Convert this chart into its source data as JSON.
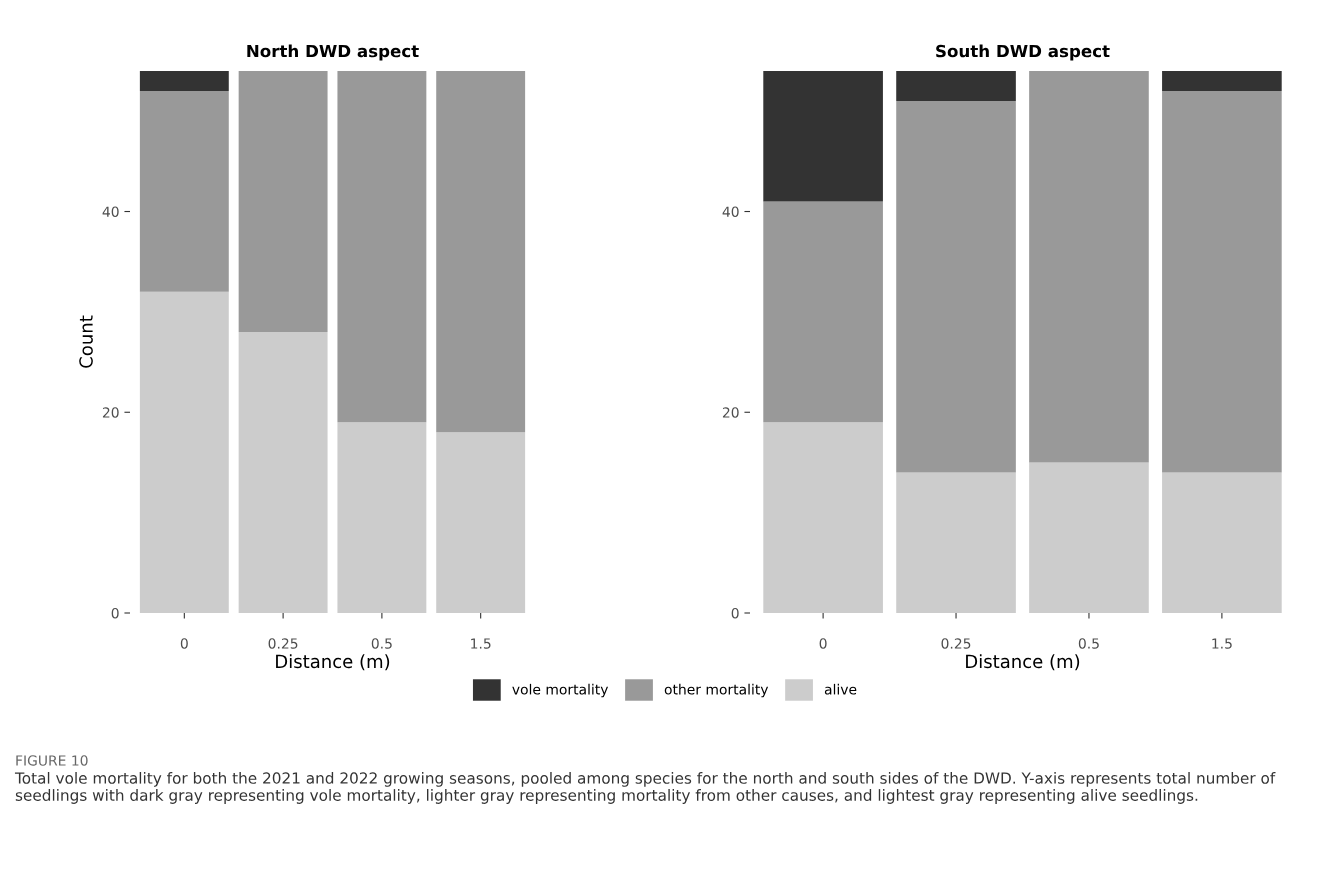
{
  "chart_data": [
    {
      "type": "bar",
      "title": "North DWD aspect",
      "xlabel": "Distance (m)",
      "ylabel": "Count",
      "categories": [
        "0",
        "0.25",
        "0.5",
        "1.5"
      ],
      "stacked": true,
      "legend": "bottom",
      "ylim": [
        0,
        54
      ],
      "yticks": [
        0,
        20,
        40
      ],
      "grid": false,
      "series": [
        {
          "name": "alive",
          "color": "#cccccc",
          "values": [
            32,
            28,
            19,
            18
          ]
        },
        {
          "name": "other mortality",
          "color": "#999999",
          "values": [
            20,
            26,
            35,
            36
          ]
        },
        {
          "name": "vole mortality",
          "color": "#333333",
          "values": [
            2,
            0,
            0,
            0
          ]
        }
      ]
    },
    {
      "type": "bar",
      "title": "South DWD aspect",
      "xlabel": "Distance (m)",
      "categories": [
        "0",
        "0.25",
        "0.5",
        "1.5"
      ],
      "stacked": true,
      "ylim": [
        0,
        54
      ],
      "yticks": [
        0,
        20,
        40
      ],
      "grid": false,
      "annotations": [
        "FIGURE 10",
        "Total vole mortality for both the 2021 and 2022 growing seasons, pooled among species for the north and south sides of the DWD. Y-axis represents total number of seedlings with dark gray representing vole mortality, lighter gray representing mortality from other causes, and lightest gray representing alive seedlings."
      ],
      "series": [
        {
          "color": "#cccccc",
          "values": [
            19,
            14,
            15,
            14
          ]
        },
        {
          "color": "#999999",
          "values": [
            22,
            37,
            39,
            38
          ]
        },
        {
          "color": "#333333",
          "values": [
            13,
            3,
            0,
            2
          ]
        }
      ]
    }
  ]
}
